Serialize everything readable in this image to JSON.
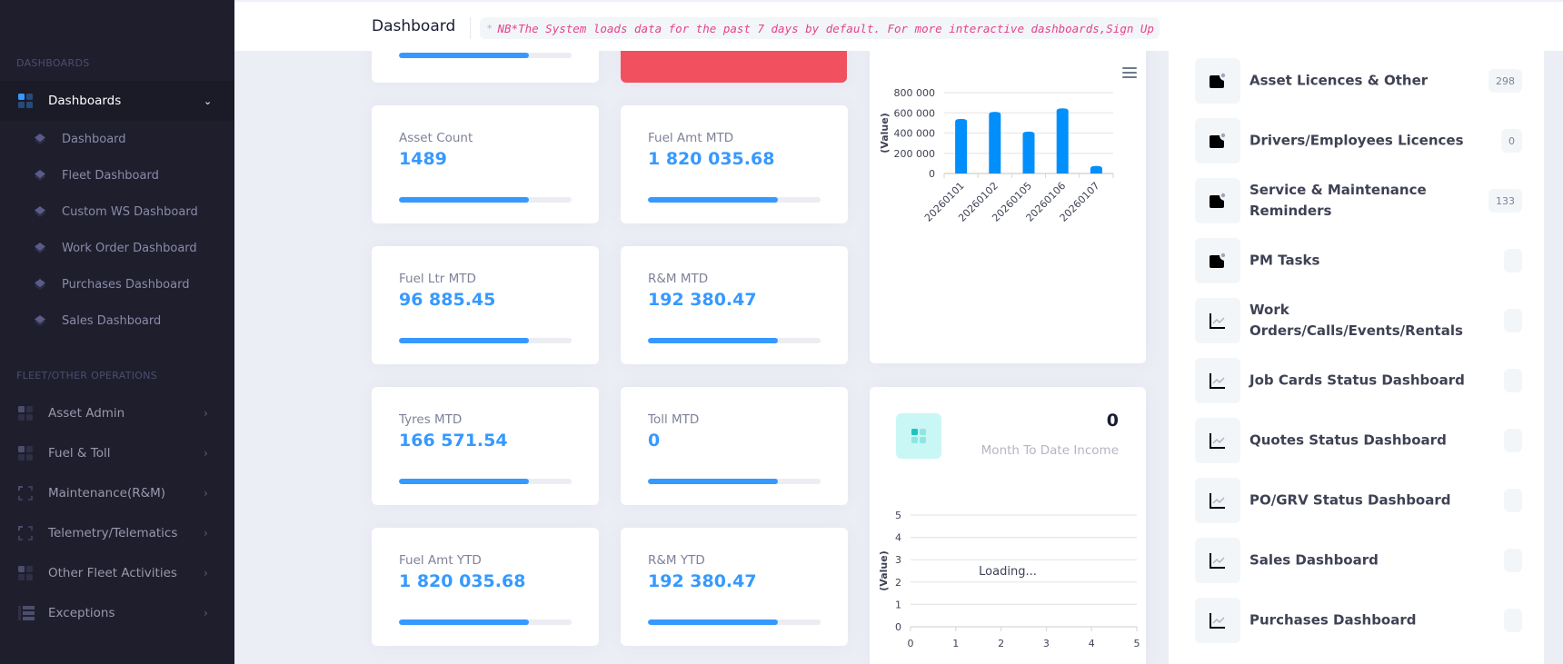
{
  "sidebar": {
    "sections": [
      {
        "title": "DASHBOARDS"
      },
      {
        "title": "FLEET/OTHER OPERATIONS"
      }
    ],
    "dashboards_group": {
      "label": "Dashboards",
      "expanded": true
    },
    "dashboard_items": [
      {
        "label": "Dashboard"
      },
      {
        "label": "Fleet Dashboard"
      },
      {
        "label": "Custom WS Dashboard"
      },
      {
        "label": "Work Order Dashboard"
      },
      {
        "label": "Purchases Dashboard"
      },
      {
        "label": "Sales Dashboard"
      }
    ],
    "fleet_items": [
      {
        "label": "Asset Admin",
        "icon": "grid-icon"
      },
      {
        "label": "Fuel & Toll",
        "icon": "grid-icon"
      },
      {
        "label": "Maintenance(R&M)",
        "icon": "frame-icon"
      },
      {
        "label": "Telemetry/Telematics",
        "icon": "frame-icon"
      },
      {
        "label": "Other Fleet Activities",
        "icon": "grid-icon"
      },
      {
        "label": "Exceptions",
        "icon": "list-icon"
      }
    ]
  },
  "header": {
    "title": "Dashboard",
    "note_marker": "*",
    "note": "NB*The System loads data for the past 7 days by default. For more interactive dashboards,Sign Up"
  },
  "stat_cards": [
    {
      "label": "Asset Count",
      "value": "1489",
      "progress": 0.75
    },
    {
      "label": "Fuel Amt MTD",
      "value": "1 820 035.68",
      "progress": 0.75
    },
    {
      "label": "Fuel Ltr MTD",
      "value": "96 885.45",
      "progress": 0.75
    },
    {
      "label": "R&M MTD",
      "value": "192 380.47",
      "progress": 0.75
    },
    {
      "label": "Tyres MTD",
      "value": "166 571.54",
      "progress": 0.75
    },
    {
      "label": "Toll MTD",
      "value": "0",
      "progress": 0.75
    },
    {
      "label": "Fuel Amt YTD",
      "value": "1 820 035.68",
      "progress": 0.75
    },
    {
      "label": "R&M YTD",
      "value": "192 380.47",
      "progress": 0.75
    }
  ],
  "top_partial_card": {
    "progress": 0.75
  },
  "colors": {
    "accent": "#3699ff",
    "danger": "#f1505f",
    "sidebar_bg": "#1e1e2d",
    "note_text": "#e4428d",
    "bar": "#008ffb"
  },
  "income_card": {
    "value": "0",
    "label": "Month To Date Income",
    "loading_text": "Loading..."
  },
  "chart_data": [
    {
      "type": "bar",
      "title": "",
      "xlabel": "",
      "ylabel": "(Value)",
      "categories": [
        "20260101",
        "20260102",
        "20260105",
        "20260106",
        "20260107"
      ],
      "values": [
        540000,
        610000,
        415000,
        645000,
        75000
      ],
      "ylim": [
        0,
        800000
      ],
      "yticks": [
        "0",
        "200 000",
        "400 000",
        "600 000",
        "800 000"
      ],
      "grid": true,
      "legend": "none"
    },
    {
      "type": "line",
      "title": "",
      "xlabel": "",
      "ylabel": "(Value)",
      "x": [],
      "values": [],
      "xlim": [
        0,
        5
      ],
      "ylim": [
        0,
        5
      ],
      "xticks": [
        "0",
        "1",
        "2",
        "3",
        "4",
        "5"
      ],
      "yticks": [
        "0",
        "1",
        "2",
        "3",
        "4",
        "5"
      ],
      "grid": true,
      "status": "Loading..."
    }
  ],
  "right_panel": {
    "items": [
      {
        "label": "Asset Licences & Other",
        "badge": "298",
        "icon": "calendar-dot-icon"
      },
      {
        "label": "Drivers/Employees Licences",
        "badge": "0",
        "icon": "calendar-dot-icon"
      },
      {
        "label": "Service & Maintenance Reminders",
        "badge": "133",
        "icon": "calendar-dot-icon"
      },
      {
        "label": "PM Tasks",
        "badge": "",
        "icon": "calendar-dot-icon"
      },
      {
        "label": "Work Orders/Calls/Events/Rentals",
        "badge": "",
        "icon": "line-chart-icon"
      },
      {
        "label": "Job Cards Status Dashboard",
        "badge": "",
        "icon": "line-chart-icon"
      },
      {
        "label": "Quotes Status Dashboard",
        "badge": "",
        "icon": "line-chart-icon"
      },
      {
        "label": "PO/GRV Status Dashboard",
        "badge": "",
        "icon": "line-chart-icon"
      },
      {
        "label": "Sales Dashboard",
        "badge": "",
        "icon": "line-chart-icon"
      },
      {
        "label": "Purchases Dashboard",
        "badge": "",
        "icon": "line-chart-icon"
      }
    ]
  }
}
